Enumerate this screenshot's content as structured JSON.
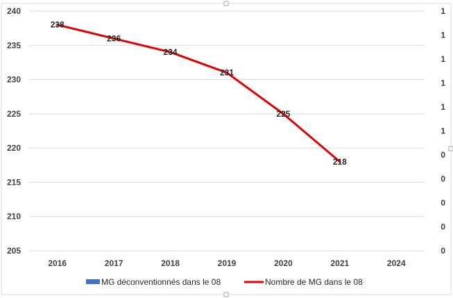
{
  "chart_data": {
    "type": "line",
    "categories": [
      "2016",
      "2017",
      "2018",
      "2019",
      "2020",
      "2021",
      "2024"
    ],
    "series": [
      {
        "name": "MG déconventionnés dans le 08",
        "type": "bar",
        "axis": "secondary",
        "color": "#4472C4",
        "values": [
          null,
          null,
          null,
          null,
          null,
          null,
          null
        ]
      },
      {
        "name": "Nombre de MG dans le 08",
        "type": "line",
        "axis": "primary",
        "color": "#E00000",
        "values": [
          238,
          236,
          234,
          231,
          225,
          218,
          null
        ]
      }
    ],
    "data_labels": [
      "238",
      "236",
      "234",
      "231",
      "225",
      "218"
    ],
    "y_primary": {
      "ylim": [
        205,
        240
      ],
      "ticks": [
        "240",
        "235",
        "230",
        "225",
        "220",
        "215",
        "210",
        "205"
      ]
    },
    "y_secondary": {
      "ticks": [
        "1",
        "1",
        "1",
        "1",
        "1",
        "1",
        "0",
        "0",
        "0",
        "0",
        "0"
      ]
    },
    "grid": true,
    "legend_position": "bottom"
  }
}
